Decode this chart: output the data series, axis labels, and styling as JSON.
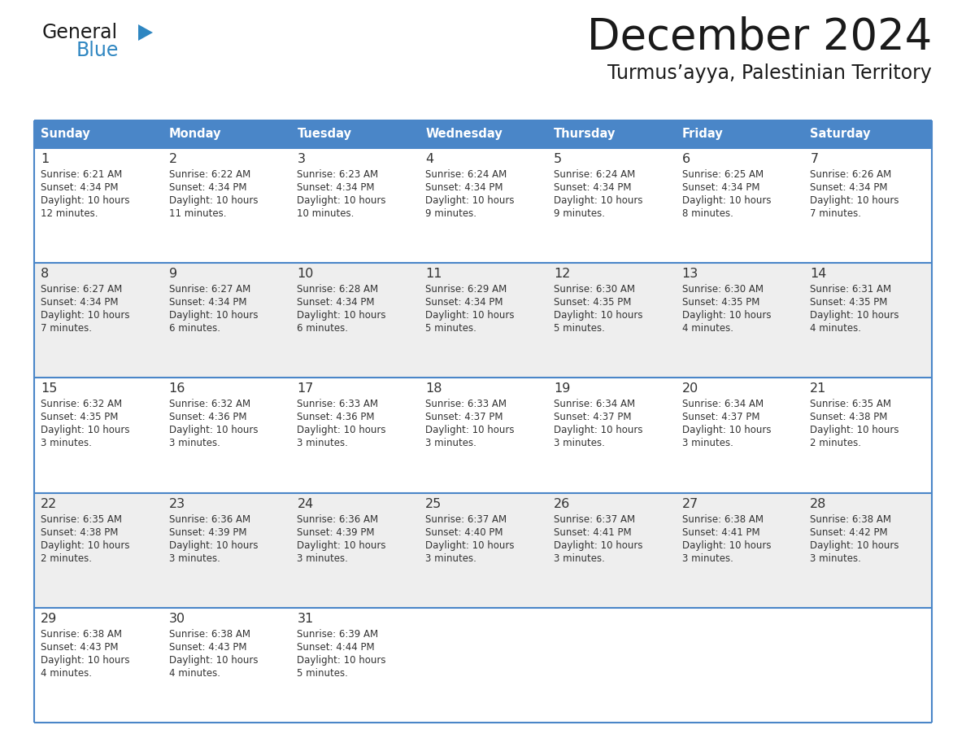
{
  "title": "December 2024",
  "subtitle": "Turmus’ayya, Palestinian Territory",
  "days_of_week": [
    "Sunday",
    "Monday",
    "Tuesday",
    "Wednesday",
    "Thursday",
    "Friday",
    "Saturday"
  ],
  "header_bg": "#4A86C8",
  "header_text": "#FFFFFF",
  "cell_bg_light": "#FFFFFF",
  "cell_bg_alt": "#EEEEEE",
  "row_line_color": "#4A86C8",
  "day_num_color": "#333333",
  "cell_text_color": "#333333",
  "title_color": "#1a1a1a",
  "calendar": [
    [
      {
        "day": 1,
        "sunrise": "6:21 AM",
        "sunset": "4:34 PM",
        "daylight": "10 hours and 12 minutes."
      },
      {
        "day": 2,
        "sunrise": "6:22 AM",
        "sunset": "4:34 PM",
        "daylight": "10 hours and 11 minutes."
      },
      {
        "day": 3,
        "sunrise": "6:23 AM",
        "sunset": "4:34 PM",
        "daylight": "10 hours and 10 minutes."
      },
      {
        "day": 4,
        "sunrise": "6:24 AM",
        "sunset": "4:34 PM",
        "daylight": "10 hours and 9 minutes."
      },
      {
        "day": 5,
        "sunrise": "6:24 AM",
        "sunset": "4:34 PM",
        "daylight": "10 hours and 9 minutes."
      },
      {
        "day": 6,
        "sunrise": "6:25 AM",
        "sunset": "4:34 PM",
        "daylight": "10 hours and 8 minutes."
      },
      {
        "day": 7,
        "sunrise": "6:26 AM",
        "sunset": "4:34 PM",
        "daylight": "10 hours and 7 minutes."
      }
    ],
    [
      {
        "day": 8,
        "sunrise": "6:27 AM",
        "sunset": "4:34 PM",
        "daylight": "10 hours and 7 minutes."
      },
      {
        "day": 9,
        "sunrise": "6:27 AM",
        "sunset": "4:34 PM",
        "daylight": "10 hours and 6 minutes."
      },
      {
        "day": 10,
        "sunrise": "6:28 AM",
        "sunset": "4:34 PM",
        "daylight": "10 hours and 6 minutes."
      },
      {
        "day": 11,
        "sunrise": "6:29 AM",
        "sunset": "4:34 PM",
        "daylight": "10 hours and 5 minutes."
      },
      {
        "day": 12,
        "sunrise": "6:30 AM",
        "sunset": "4:35 PM",
        "daylight": "10 hours and 5 minutes."
      },
      {
        "day": 13,
        "sunrise": "6:30 AM",
        "sunset": "4:35 PM",
        "daylight": "10 hours and 4 minutes."
      },
      {
        "day": 14,
        "sunrise": "6:31 AM",
        "sunset": "4:35 PM",
        "daylight": "10 hours and 4 minutes."
      }
    ],
    [
      {
        "day": 15,
        "sunrise": "6:32 AM",
        "sunset": "4:35 PM",
        "daylight": "10 hours and 3 minutes."
      },
      {
        "day": 16,
        "sunrise": "6:32 AM",
        "sunset": "4:36 PM",
        "daylight": "10 hours and 3 minutes."
      },
      {
        "day": 17,
        "sunrise": "6:33 AM",
        "sunset": "4:36 PM",
        "daylight": "10 hours and 3 minutes."
      },
      {
        "day": 18,
        "sunrise": "6:33 AM",
        "sunset": "4:37 PM",
        "daylight": "10 hours and 3 minutes."
      },
      {
        "day": 19,
        "sunrise": "6:34 AM",
        "sunset": "4:37 PM",
        "daylight": "10 hours and 3 minutes."
      },
      {
        "day": 20,
        "sunrise": "6:34 AM",
        "sunset": "4:37 PM",
        "daylight": "10 hours and 3 minutes."
      },
      {
        "day": 21,
        "sunrise": "6:35 AM",
        "sunset": "4:38 PM",
        "daylight": "10 hours and 2 minutes."
      }
    ],
    [
      {
        "day": 22,
        "sunrise": "6:35 AM",
        "sunset": "4:38 PM",
        "daylight": "10 hours and 2 minutes."
      },
      {
        "day": 23,
        "sunrise": "6:36 AM",
        "sunset": "4:39 PM",
        "daylight": "10 hours and 3 minutes."
      },
      {
        "day": 24,
        "sunrise": "6:36 AM",
        "sunset": "4:39 PM",
        "daylight": "10 hours and 3 minutes."
      },
      {
        "day": 25,
        "sunrise": "6:37 AM",
        "sunset": "4:40 PM",
        "daylight": "10 hours and 3 minutes."
      },
      {
        "day": 26,
        "sunrise": "6:37 AM",
        "sunset": "4:41 PM",
        "daylight": "10 hours and 3 minutes."
      },
      {
        "day": 27,
        "sunrise": "6:38 AM",
        "sunset": "4:41 PM",
        "daylight": "10 hours and 3 minutes."
      },
      {
        "day": 28,
        "sunrise": "6:38 AM",
        "sunset": "4:42 PM",
        "daylight": "10 hours and 3 minutes."
      }
    ],
    [
      {
        "day": 29,
        "sunrise": "6:38 AM",
        "sunset": "4:43 PM",
        "daylight": "10 hours and 4 minutes."
      },
      {
        "day": 30,
        "sunrise": "6:38 AM",
        "sunset": "4:43 PM",
        "daylight": "10 hours and 4 minutes."
      },
      {
        "day": 31,
        "sunrise": "6:39 AM",
        "sunset": "4:44 PM",
        "daylight": "10 hours and 5 minutes."
      },
      null,
      null,
      null,
      null
    ]
  ],
  "logo_text1": "General",
  "logo_text2": "Blue",
  "logo_color1": "#1a1a1a",
  "logo_color2": "#2E86C1",
  "logo_triangle_color": "#2E86C1",
  "figwidth": 11.88,
  "figheight": 9.18,
  "dpi": 100
}
